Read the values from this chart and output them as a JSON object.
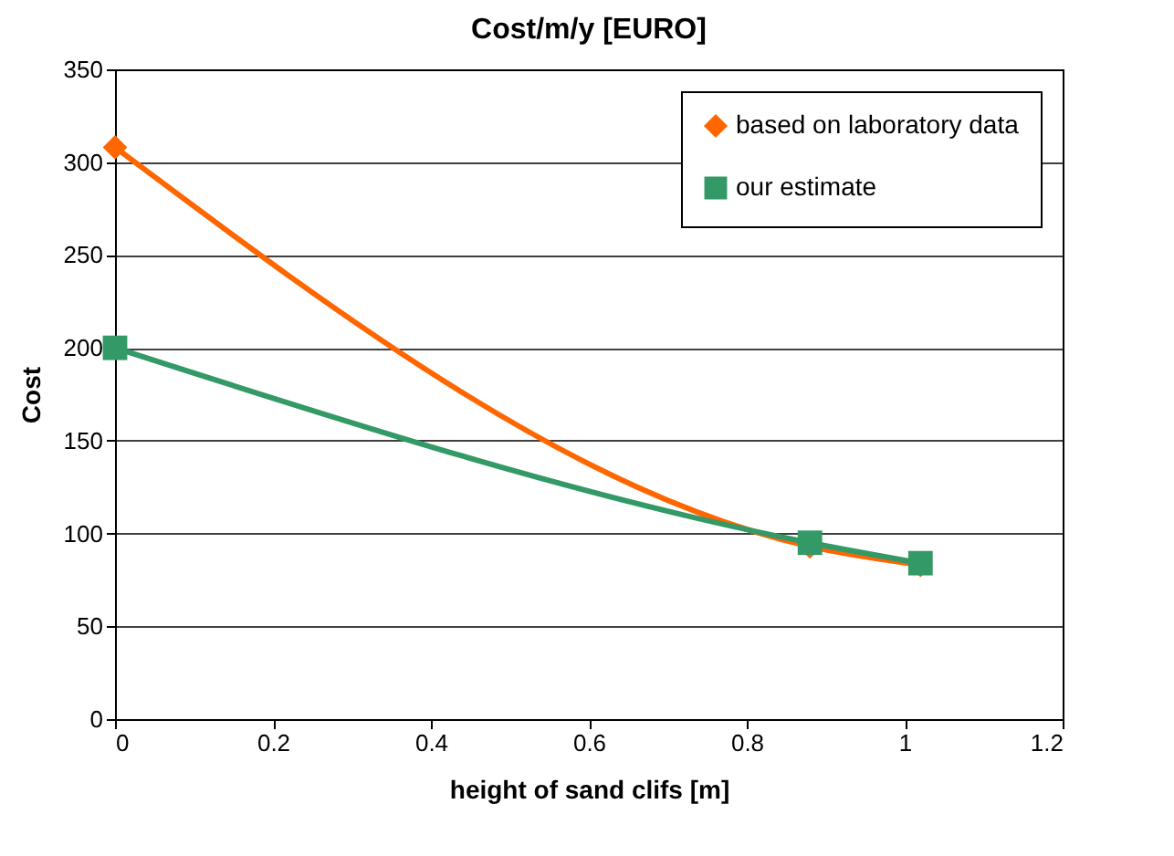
{
  "chart_data": {
    "type": "line",
    "title": "Cost/m/y [EURO]",
    "xlabel": "height of sand clifs [m]",
    "ylabel": "Cost",
    "series": [
      {
        "name": "based on laboratory data",
        "color": "#ff6600",
        "marker": "diamond",
        "x": [
          0,
          0.88,
          1.02
        ],
        "values": [
          308,
          93,
          83
        ]
      },
      {
        "name": "our estimate",
        "color": "#339966",
        "marker": "square",
        "x": [
          0,
          0.88,
          1.02
        ],
        "values": [
          200,
          95,
          84
        ]
      }
    ],
    "xlim": [
      0,
      1.2
    ],
    "xticks": [
      0,
      0.2,
      0.4,
      0.6,
      0.8,
      1,
      1.2
    ],
    "ylim": [
      0,
      350
    ],
    "yticks": [
      0,
      50,
      100,
      150,
      200,
      250,
      300,
      350
    ],
    "grid": "y",
    "legend": "top right"
  }
}
